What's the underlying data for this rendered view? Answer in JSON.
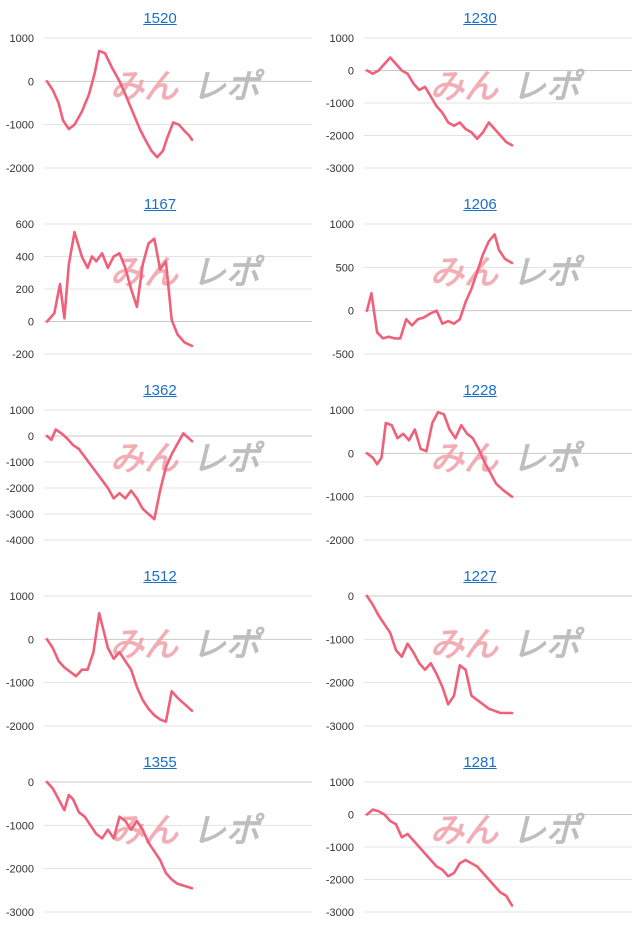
{
  "watermark": {
    "left": "みん",
    "right": "レポ"
  },
  "colors": {
    "line": "#f0607a",
    "title_link": "#1a6fc9",
    "grid": "#e3e3e3"
  },
  "chart_data": [
    {
      "type": "line",
      "title": "1520",
      "ylim": [
        -2000,
        1000
      ],
      "yticks": [
        1000,
        0,
        -1000,
        -2000
      ],
      "x": [
        0,
        0.04,
        0.08,
        0.11,
        0.15,
        0.19,
        0.24,
        0.29,
        0.33,
        0.36,
        0.4,
        0.45,
        0.5,
        0.54,
        0.59,
        0.64,
        0.67,
        0.72,
        0.76,
        0.8,
        0.83,
        0.87,
        0.91,
        0.95,
        0.98,
        1.0
      ],
      "values": [
        0,
        -200,
        -500,
        -900,
        -1100,
        -1000,
        -700,
        -300,
        200,
        700,
        650,
        300,
        0,
        -300,
        -700,
        -1100,
        -1300,
        -1600,
        -1750,
        -1600,
        -1300,
        -950,
        -1000,
        -1150,
        -1250,
        -1350
      ]
    },
    {
      "type": "line",
      "title": "1230",
      "ylim": [
        -3000,
        1000
      ],
      "yticks": [
        1000,
        0,
        -1000,
        -2000,
        -3000
      ],
      "x": [
        0,
        0.04,
        0.08,
        0.12,
        0.16,
        0.2,
        0.24,
        0.28,
        0.32,
        0.36,
        0.4,
        0.44,
        0.48,
        0.52,
        0.56,
        0.6,
        0.64,
        0.68,
        0.72,
        0.76,
        0.8,
        0.84,
        0.88,
        0.92,
        0.96,
        1.0
      ],
      "values": [
        0,
        -100,
        0,
        200,
        400,
        200,
        0,
        -100,
        -400,
        -600,
        -500,
        -800,
        -1100,
        -1300,
        -1600,
        -1700,
        -1600,
        -1800,
        -1900,
        -2100,
        -1900,
        -1600,
        -1800,
        -2000,
        -2200,
        -2300
      ]
    },
    {
      "type": "line",
      "title": "1167",
      "ylim": [
        -200,
        600
      ],
      "yticks": [
        600,
        400,
        200,
        0,
        -200
      ],
      "x": [
        0,
        0.05,
        0.09,
        0.12,
        0.15,
        0.19,
        0.24,
        0.28,
        0.31,
        0.34,
        0.38,
        0.42,
        0.46,
        0.5,
        0.54,
        0.58,
        0.62,
        0.66,
        0.7,
        0.74,
        0.78,
        0.82,
        0.86,
        0.9,
        0.95,
        1.0
      ],
      "values": [
        0,
        50,
        230,
        20,
        350,
        550,
        400,
        330,
        400,
        370,
        420,
        330,
        400,
        420,
        330,
        200,
        90,
        350,
        480,
        510,
        320,
        370,
        10,
        -80,
        -130,
        -150
      ]
    },
    {
      "type": "line",
      "title": "1206",
      "ylim": [
        -500,
        1000
      ],
      "yticks": [
        1000,
        500,
        0,
        -500
      ],
      "x": [
        0,
        0.03,
        0.07,
        0.11,
        0.15,
        0.19,
        0.23,
        0.27,
        0.31,
        0.35,
        0.39,
        0.44,
        0.48,
        0.52,
        0.56,
        0.6,
        0.64,
        0.68,
        0.72,
        0.76,
        0.8,
        0.84,
        0.88,
        0.91,
        0.95,
        1.0
      ],
      "values": [
        0,
        200,
        -250,
        -320,
        -300,
        -320,
        -320,
        -100,
        -170,
        -100,
        -80,
        -30,
        0,
        -150,
        -120,
        -150,
        -100,
        100,
        250,
        450,
        650,
        800,
        880,
        700,
        600,
        550
      ]
    },
    {
      "type": "line",
      "title": "1362",
      "ylim": [
        -4000,
        1000
      ],
      "yticks": [
        1000,
        0,
        -1000,
        -2000,
        -3000,
        -4000
      ],
      "x": [
        0,
        0.03,
        0.06,
        0.1,
        0.14,
        0.18,
        0.22,
        0.26,
        0.3,
        0.34,
        0.38,
        0.42,
        0.46,
        0.5,
        0.54,
        0.58,
        0.62,
        0.66,
        0.7,
        0.74,
        0.78,
        0.82,
        0.86,
        0.9,
        0.94,
        1.0
      ],
      "values": [
        0,
        -150,
        250,
        100,
        -100,
        -350,
        -500,
        -800,
        -1100,
        -1400,
        -1700,
        -2000,
        -2400,
        -2200,
        -2400,
        -2100,
        -2400,
        -2800,
        -3000,
        -3200,
        -2100,
        -1200,
        -700,
        -300,
        100,
        -200
      ]
    },
    {
      "type": "line",
      "title": "1228",
      "ylim": [
        -2000,
        1000
      ],
      "yticks": [
        1000,
        0,
        -1000,
        -2000
      ],
      "x": [
        0,
        0.04,
        0.07,
        0.1,
        0.13,
        0.17,
        0.21,
        0.25,
        0.29,
        0.33,
        0.37,
        0.41,
        0.45,
        0.49,
        0.53,
        0.57,
        0.61,
        0.65,
        0.69,
        0.73,
        0.77,
        0.81,
        0.85,
        0.89,
        0.94,
        1.0
      ],
      "values": [
        0,
        -100,
        -250,
        -100,
        700,
        650,
        350,
        450,
        300,
        550,
        100,
        50,
        700,
        950,
        900,
        550,
        350,
        650,
        450,
        350,
        100,
        -200,
        -450,
        -700,
        -850,
        -1000
      ]
    },
    {
      "type": "line",
      "title": "1512",
      "ylim": [
        -2000,
        1000
      ],
      "yticks": [
        1000,
        0,
        -1000,
        -2000
      ],
      "x": [
        0,
        0.04,
        0.08,
        0.12,
        0.16,
        0.2,
        0.24,
        0.28,
        0.32,
        0.36,
        0.39,
        0.42,
        0.46,
        0.5,
        0.54,
        0.58,
        0.62,
        0.66,
        0.7,
        0.74,
        0.78,
        0.82,
        0.86,
        0.9,
        0.95,
        1.0
      ],
      "values": [
        0,
        -200,
        -500,
        -650,
        -750,
        -850,
        -700,
        -700,
        -300,
        600,
        200,
        -200,
        -450,
        -300,
        -500,
        -700,
        -1100,
        -1400,
        -1600,
        -1750,
        -1850,
        -1900,
        -1200,
        -1350,
        -1500,
        -1650
      ]
    },
    {
      "type": "line",
      "title": "1227",
      "ylim": [
        -3000,
        0
      ],
      "yticks": [
        0,
        -1000,
        -2000,
        -3000
      ],
      "x": [
        0,
        0.04,
        0.08,
        0.12,
        0.16,
        0.2,
        0.24,
        0.28,
        0.32,
        0.36,
        0.4,
        0.44,
        0.48,
        0.52,
        0.56,
        0.6,
        0.64,
        0.68,
        0.72,
        0.76,
        0.8,
        0.84,
        0.88,
        0.92,
        0.96,
        1.0
      ],
      "values": [
        0,
        -200,
        -450,
        -650,
        -850,
        -1250,
        -1400,
        -1100,
        -1300,
        -1550,
        -1700,
        -1550,
        -1800,
        -2100,
        -2500,
        -2300,
        -1600,
        -1700,
        -2300,
        -2400,
        -2500,
        -2600,
        -2650,
        -2700,
        -2700,
        -2700
      ]
    },
    {
      "type": "line",
      "title": "1355",
      "ylim": [
        -3000,
        0
      ],
      "yticks": [
        0,
        -1000,
        -2000,
        -3000
      ],
      "x": [
        0,
        0.04,
        0.08,
        0.12,
        0.15,
        0.18,
        0.22,
        0.26,
        0.3,
        0.34,
        0.38,
        0.42,
        0.46,
        0.5,
        0.54,
        0.58,
        0.62,
        0.66,
        0.7,
        0.74,
        0.78,
        0.82,
        0.86,
        0.9,
        0.95,
        1.0
      ],
      "values": [
        0,
        -150,
        -400,
        -650,
        -300,
        -400,
        -700,
        -800,
        -1000,
        -1200,
        -1300,
        -1100,
        -1300,
        -800,
        -900,
        -1100,
        -900,
        -1100,
        -1400,
        -1600,
        -1800,
        -2100,
        -2250,
        -2350,
        -2400,
        -2450
      ]
    },
    {
      "type": "line",
      "title": "1281",
      "ylim": [
        -3000,
        1000
      ],
      "yticks": [
        1000,
        0,
        -1000,
        -2000,
        -3000
      ],
      "x": [
        0,
        0.04,
        0.08,
        0.12,
        0.16,
        0.2,
        0.24,
        0.28,
        0.32,
        0.36,
        0.4,
        0.44,
        0.48,
        0.52,
        0.56,
        0.6,
        0.64,
        0.68,
        0.72,
        0.76,
        0.8,
        0.84,
        0.88,
        0.92,
        0.96,
        1.0
      ],
      "values": [
        0,
        150,
        100,
        0,
        -200,
        -300,
        -700,
        -600,
        -800,
        -1000,
        -1200,
        -1400,
        -1600,
        -1700,
        -1900,
        -1800,
        -1500,
        -1400,
        -1500,
        -1600,
        -1800,
        -2000,
        -2200,
        -2400,
        -2500,
        -2800
      ]
    }
  ]
}
